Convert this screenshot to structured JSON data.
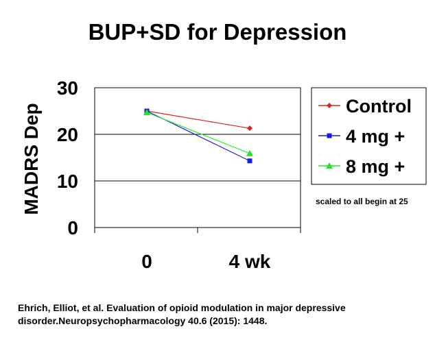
{
  "title": "BUP+SD for Depression",
  "note": "scaled to all begin at 25",
  "citation": "Ehrich, Elliot, et al. Evaluation of opioid modulation in major depressive disorder.Neuropsychopharmacology 40.6 (2015): 1448.",
  "chart_data": {
    "type": "line",
    "title": "BUP+SD for Depression",
    "xlabel": "",
    "ylabel": "MADRS Dep",
    "categories": [
      "0",
      "4 wk"
    ],
    "ylim": [
      0,
      30
    ],
    "yticks": [
      0,
      10,
      20,
      30
    ],
    "grid": "horizontal",
    "legend_position": "right",
    "series": [
      {
        "name": "Control",
        "values": [
          25,
          21.3
        ],
        "color": "#e0201c",
        "marker": "diamond"
      },
      {
        "name": "4 mg +",
        "values": [
          25,
          14.3
        ],
        "color": "#1a1ae6",
        "marker": "square"
      },
      {
        "name": "8 mg +",
        "values": [
          24.7,
          15.9
        ],
        "color": "#1ee61e",
        "marker": "triangle"
      }
    ]
  }
}
